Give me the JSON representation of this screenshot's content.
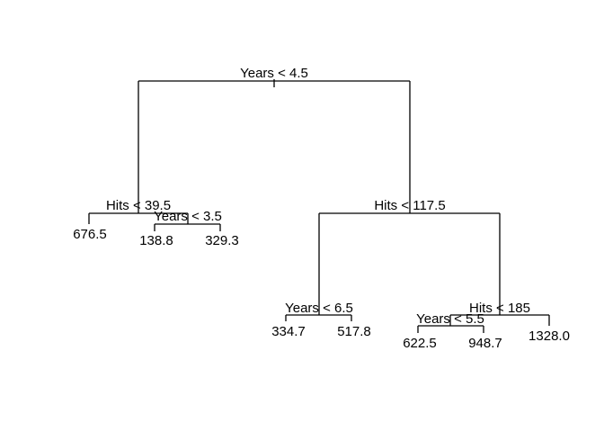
{
  "tree": {
    "splits": {
      "root": "Years < 4.5",
      "left": "Hits < 39.5",
      "left_right": "Years < 3.5",
      "right": "Hits < 117.5",
      "right_left": "Years < 6.5",
      "right_right": "Hits < 185",
      "right_right_left": "Years < 5.5"
    },
    "leaves": {
      "l1": "676.5",
      "l2": "138.8",
      "l3": "329.3",
      "l4": "334.7",
      "l5": "517.8",
      "l6": "622.5",
      "l7": "948.7",
      "l8": "1328.0"
    }
  }
}
